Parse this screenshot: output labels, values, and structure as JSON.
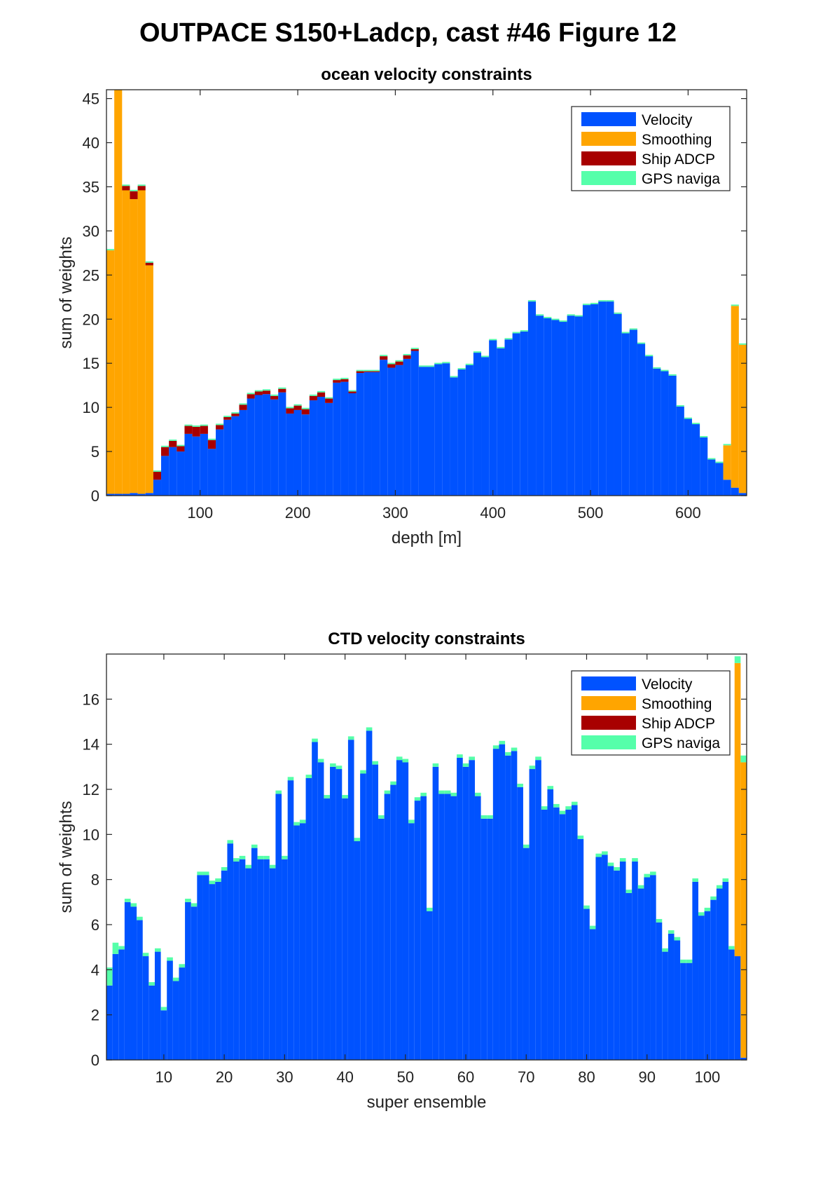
{
  "figure_title": "OUTPACE S150+Ladcp, cast #46  Figure 12",
  "colors": {
    "Velocity": "#0052FF",
    "Smoothing": "#FFA500",
    "Ship ADCP": "#A80000",
    "GPS naviga": "#55FFAA"
  },
  "chart_data": [
    {
      "type": "bar",
      "stacked": true,
      "title": "ocean velocity constraints",
      "xlabel": "depth [m]",
      "ylabel": "sum of weights",
      "xlim": [
        4,
        660
      ],
      "ylim": [
        0,
        46
      ],
      "bin_width": 8,
      "xticks": [
        100,
        200,
        300,
        400,
        500,
        600
      ],
      "yticks": [
        0,
        5,
        10,
        15,
        20,
        25,
        30,
        35,
        40,
        45
      ],
      "legend": [
        "Velocity",
        "Smoothing",
        "Ship ADCP",
        "GPS naviga"
      ],
      "legend_position": "top-right",
      "x": [
        8,
        16,
        24,
        32,
        40,
        48,
        56,
        64,
        72,
        80,
        88,
        96,
        104,
        112,
        120,
        128,
        136,
        144,
        152,
        160,
        168,
        176,
        184,
        192,
        200,
        208,
        216,
        224,
        232,
        240,
        248,
        256,
        264,
        272,
        280,
        288,
        296,
        304,
        312,
        320,
        328,
        336,
        344,
        352,
        360,
        368,
        376,
        384,
        392,
        400,
        408,
        416,
        424,
        432,
        440,
        448,
        456,
        464,
        472,
        480,
        488,
        496,
        504,
        512,
        520,
        528,
        536,
        544,
        552,
        560,
        568,
        576,
        584,
        592,
        600,
        608,
        616,
        624,
        632,
        640,
        648,
        656
      ],
      "series": [
        {
          "name": "Velocity",
          "values": [
            0.2,
            0.2,
            0.2,
            0.3,
            0.2,
            0.3,
            1.8,
            4.5,
            5.5,
            5,
            7,
            6.7,
            7,
            5.3,
            7.5,
            8.6,
            9,
            9.7,
            11,
            11.4,
            11.5,
            10.9,
            11.7,
            9.3,
            9.7,
            9.2,
            10.8,
            11.2,
            10.5,
            12.8,
            12.9,
            11.6,
            13.9,
            14,
            14,
            15.4,
            14.5,
            14.8,
            15.5,
            16.4,
            14.6,
            14.6,
            14.9,
            15,
            13.4,
            14.3,
            14.8,
            16.2,
            15.7,
            17.6,
            16.7,
            17.7,
            18.4,
            18.6,
            22,
            20.4,
            20.1,
            19.9,
            19.7,
            20.4,
            20.3,
            21.6,
            21.7,
            22,
            22,
            20.6,
            18.4,
            18.8,
            17.2,
            15.8,
            14.4,
            14.1,
            13.6,
            10.1,
            8.7,
            8.1,
            6.6,
            4.1,
            3.7,
            1.8,
            0.9,
            0.3
          ]
        },
        {
          "name": "Smoothing",
          "values": [
            27.6,
            45.8,
            34.4,
            33.3,
            34.4,
            25.8,
            0,
            0,
            0,
            0,
            0,
            0,
            0,
            0,
            0,
            0,
            0,
            0,
            0,
            0,
            0,
            0,
            0,
            0,
            0,
            0,
            0,
            0,
            0,
            0,
            0,
            0,
            0,
            0,
            0,
            0,
            0,
            0,
            0,
            0,
            0,
            0,
            0,
            0,
            0,
            0,
            0,
            0,
            0,
            0,
            0,
            0,
            0,
            0,
            0,
            0,
            0,
            0,
            0,
            0,
            0,
            0,
            0,
            0,
            0,
            0,
            0,
            0,
            0,
            0,
            0,
            0,
            0,
            0,
            0,
            0,
            0,
            0,
            0,
            3.9,
            20.6,
            16.8
          ]
        },
        {
          "name": "Ship ADCP",
          "values": [
            0,
            0,
            0.5,
            0.9,
            0.5,
            0.3,
            0.9,
            1,
            0.7,
            0.6,
            0.9,
            1.1,
            0.9,
            1,
            0.5,
            0.3,
            0.3,
            0.6,
            0.5,
            0.4,
            0.4,
            0.4,
            0.4,
            0.6,
            0.5,
            0.6,
            0.5,
            0.5,
            0.5,
            0.3,
            0.3,
            0.2,
            0.2,
            0.1,
            0.1,
            0.4,
            0.4,
            0.4,
            0.4,
            0.2,
            0,
            0,
            0,
            0,
            0,
            0,
            0,
            0,
            0,
            0,
            0,
            0,
            0,
            0,
            0,
            0,
            0,
            0,
            0,
            0,
            0,
            0,
            0,
            0,
            0,
            0,
            0,
            0,
            0,
            0,
            0,
            0,
            0,
            0,
            0,
            0,
            0,
            0,
            0,
            0,
            0,
            0
          ]
        },
        {
          "name": "GPS naviga",
          "values": [
            0.15,
            0.15,
            0.15,
            0.15,
            0.15,
            0.15,
            0.15,
            0.15,
            0.15,
            0.15,
            0.15,
            0.15,
            0.15,
            0.15,
            0.15,
            0.15,
            0.15,
            0.15,
            0.15,
            0.15,
            0.15,
            0.15,
            0.15,
            0.15,
            0.15,
            0.15,
            0.15,
            0.15,
            0.15,
            0.15,
            0.15,
            0.15,
            0.15,
            0.15,
            0.15,
            0.15,
            0.15,
            0.15,
            0.15,
            0.15,
            0.15,
            0.15,
            0.15,
            0.15,
            0.15,
            0.15,
            0.15,
            0.15,
            0.15,
            0.15,
            0.15,
            0.15,
            0.15,
            0.15,
            0.15,
            0.15,
            0.15,
            0.15,
            0.15,
            0.15,
            0.15,
            0.15,
            0.15,
            0.15,
            0.15,
            0.15,
            0.15,
            0.15,
            0.15,
            0.15,
            0.15,
            0.15,
            0.15,
            0.15,
            0.15,
            0.15,
            0.15,
            0.15,
            0.15,
            0.15,
            0.15,
            0.15
          ]
        }
      ]
    },
    {
      "type": "bar",
      "stacked": true,
      "title": "CTD velocity constraints",
      "xlabel": "super ensemble",
      "ylabel": "sum of weights",
      "xlim": [
        0.5,
        106.5
      ],
      "ylim": [
        0,
        18
      ],
      "bin_width": 1,
      "xticks": [
        10,
        20,
        30,
        40,
        50,
        60,
        70,
        80,
        90,
        100
      ],
      "yticks": [
        0,
        2,
        4,
        6,
        8,
        10,
        12,
        14,
        16
      ],
      "legend": [
        "Velocity",
        "Smoothing",
        "Ship ADCP",
        "GPS naviga"
      ],
      "legend_position": "top-right",
      "x": [
        1,
        2,
        3,
        4,
        5,
        6,
        7,
        8,
        9,
        10,
        11,
        12,
        13,
        14,
        15,
        16,
        17,
        18,
        19,
        20,
        21,
        22,
        23,
        24,
        25,
        26,
        27,
        28,
        29,
        30,
        31,
        32,
        33,
        34,
        35,
        36,
        37,
        38,
        39,
        40,
        41,
        42,
        43,
        44,
        45,
        46,
        47,
        48,
        49,
        50,
        51,
        52,
        53,
        54,
        55,
        56,
        57,
        58,
        59,
        60,
        61,
        62,
        63,
        64,
        65,
        66,
        67,
        68,
        69,
        70,
        71,
        72,
        73,
        74,
        75,
        76,
        77,
        78,
        79,
        80,
        81,
        82,
        83,
        84,
        85,
        86,
        87,
        88,
        89,
        90,
        91,
        92,
        93,
        94,
        95,
        96,
        97,
        98,
        99,
        100,
        101,
        102,
        103,
        104,
        105,
        106
      ],
      "series": [
        {
          "name": "Velocity",
          "values": [
            3.3,
            4.7,
            4.9,
            7,
            6.8,
            6.2,
            4.6,
            3.3,
            4.8,
            2.2,
            4.4,
            3.5,
            4.1,
            7,
            6.8,
            8.2,
            8.2,
            7.8,
            7.9,
            8.4,
            9.6,
            8.8,
            8.9,
            8.5,
            9.4,
            8.9,
            8.9,
            8.5,
            11.8,
            8.9,
            12.4,
            10.4,
            10.5,
            12.5,
            14.1,
            13.2,
            11.6,
            13,
            12.9,
            11.6,
            14.2,
            9.7,
            12.7,
            14.6,
            13.1,
            10.7,
            11.8,
            12.2,
            13.3,
            13.2,
            10.5,
            11.5,
            11.7,
            6.6,
            13,
            11.8,
            11.8,
            11.7,
            13.4,
            13,
            13.3,
            11.7,
            10.7,
            10.7,
            13.8,
            14,
            13.5,
            13.7,
            12.1,
            9.4,
            12.9,
            13.3,
            11.1,
            12,
            11.2,
            10.9,
            11.1,
            11.3,
            9.8,
            6.7,
            5.8,
            9,
            9.1,
            8.6,
            8.4,
            8.8,
            7.4,
            8.8,
            7.6,
            8.1,
            8.2,
            6.1,
            4.8,
            5.6,
            5.3,
            4.3,
            4.3,
            7.9,
            6.4,
            6.6,
            7.1,
            7.6,
            7.9,
            4.9,
            4.6,
            0.1
          ]
        },
        {
          "name": "Smoothing",
          "values": [
            0,
            0,
            0,
            0,
            0,
            0,
            0,
            0,
            0,
            0,
            0,
            0,
            0,
            0,
            0,
            0,
            0,
            0,
            0,
            0,
            0,
            0,
            0,
            0,
            0,
            0,
            0,
            0,
            0,
            0,
            0,
            0,
            0,
            0,
            0,
            0,
            0,
            0,
            0,
            0,
            0,
            0,
            0,
            0,
            0,
            0,
            0,
            0,
            0,
            0,
            0,
            0,
            0,
            0,
            0,
            0,
            0,
            0,
            0,
            0,
            0,
            0,
            0,
            0,
            0,
            0,
            0,
            0,
            0,
            0,
            0,
            0,
            0,
            0,
            0,
            0,
            0,
            0,
            0,
            0,
            0,
            0,
            0,
            0,
            0,
            0,
            0,
            0,
            0,
            0,
            0,
            0,
            0,
            0,
            0,
            0,
            0,
            0,
            0,
            0,
            0,
            0,
            0,
            0,
            13,
            13.1
          ]
        },
        {
          "name": "Ship ADCP",
          "values": [
            0,
            0,
            0,
            0,
            0,
            0,
            0,
            0,
            0,
            0,
            0,
            0,
            0,
            0,
            0,
            0,
            0,
            0,
            0,
            0,
            0,
            0,
            0,
            0,
            0,
            0,
            0,
            0,
            0,
            0,
            0,
            0,
            0,
            0,
            0,
            0,
            0,
            0,
            0,
            0,
            0,
            0,
            0,
            0,
            0,
            0,
            0,
            0,
            0,
            0,
            0,
            0,
            0,
            0,
            0,
            0,
            0,
            0,
            0,
            0,
            0,
            0,
            0,
            0,
            0,
            0,
            0,
            0,
            0,
            0,
            0,
            0,
            0,
            0,
            0,
            0,
            0,
            0,
            0,
            0,
            0,
            0,
            0,
            0,
            0,
            0,
            0,
            0,
            0,
            0,
            0,
            0,
            0,
            0,
            0,
            0,
            0,
            0,
            0,
            0,
            0,
            0,
            0,
            0,
            0,
            0
          ]
        },
        {
          "name": "GPS naviga",
          "values": [
            0.8,
            0.5,
            0.15,
            0.15,
            0.15,
            0.15,
            0.15,
            0.15,
            0.15,
            0.15,
            0.15,
            0.15,
            0.15,
            0.15,
            0.15,
            0.15,
            0.15,
            0.15,
            0.15,
            0.15,
            0.15,
            0.15,
            0.15,
            0.15,
            0.15,
            0.15,
            0.15,
            0.15,
            0.15,
            0.15,
            0.15,
            0.15,
            0.15,
            0.15,
            0.15,
            0.15,
            0.15,
            0.15,
            0.15,
            0.15,
            0.15,
            0.15,
            0.15,
            0.15,
            0.15,
            0.15,
            0.15,
            0.15,
            0.15,
            0.15,
            0.15,
            0.15,
            0.15,
            0.15,
            0.15,
            0.15,
            0.15,
            0.15,
            0.15,
            0.15,
            0.15,
            0.15,
            0.15,
            0.15,
            0.15,
            0.15,
            0.15,
            0.15,
            0.15,
            0.15,
            0.15,
            0.15,
            0.15,
            0.15,
            0.15,
            0.15,
            0.15,
            0.15,
            0.15,
            0.15,
            0.15,
            0.15,
            0.15,
            0.15,
            0.15,
            0.15,
            0.15,
            0.15,
            0.15,
            0.15,
            0.15,
            0.15,
            0.15,
            0.15,
            0.15,
            0.15,
            0.15,
            0.15,
            0.15,
            0.15,
            0.15,
            0.15,
            0.15,
            0.15,
            0.3,
            0.3
          ]
        }
      ]
    }
  ]
}
